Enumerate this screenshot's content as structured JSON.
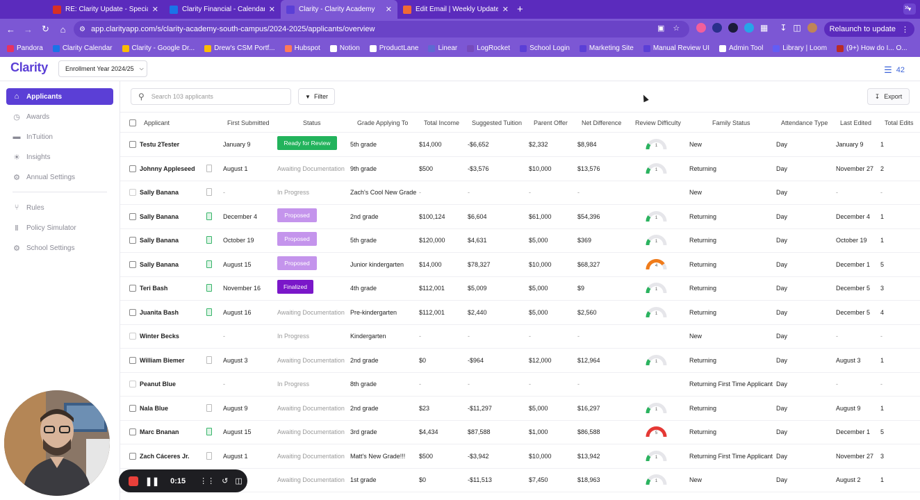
{
  "browser": {
    "tabs": [
      {
        "title": "RE: Clarity Update - Special",
        "color": "#d93025",
        "active": false
      },
      {
        "title": "Clarity Financial - Calendar -",
        "color": "#1a73e8",
        "active": false
      },
      {
        "title": "Clarity - Clarity Academy",
        "color": "#5b3fd6",
        "active": true
      },
      {
        "title": "Edit Email | Weekly Update -",
        "color": "#f06a35",
        "active": false
      }
    ],
    "url": "app.clarityapp.com/s/clarity-academy-south-campus/2024-2025/applicants/overview",
    "relaunch_label": "Relaunch to update",
    "bookmarks": [
      {
        "label": "Pandora",
        "color": "#e73360"
      },
      {
        "label": "Clarity Calendar",
        "color": "#1a73e8"
      },
      {
        "label": "Clarity - Google Dr...",
        "color": "#fbbc04"
      },
      {
        "label": "Drew's CSM Portf...",
        "color": "#fbbc04"
      },
      {
        "label": "Hubspot",
        "color": "#ff7a59"
      },
      {
        "label": "Notion",
        "color": "#ffffff"
      },
      {
        "label": "ProductLane",
        "color": "#ffffff"
      },
      {
        "label": "Linear",
        "color": "#5e6ad2"
      },
      {
        "label": "LogRocket",
        "color": "#764abc"
      },
      {
        "label": "School Login",
        "color": "#5b3fd6"
      },
      {
        "label": "Marketing Site",
        "color": "#5b3fd6"
      },
      {
        "label": "Manual Review UI",
        "color": "#5b3fd6"
      },
      {
        "label": "Admin Tool",
        "color": "#ffffff"
      },
      {
        "label": "Library | Loom",
        "color": "#625df5"
      },
      {
        "label": "(9+) How do I... O...",
        "color": "#b92b27"
      }
    ]
  },
  "app": {
    "logo": "Clarity",
    "year_select": "Enrollment Year 2024/25",
    "credits": "42",
    "accent": "#5b3fd6"
  },
  "sidebar": {
    "items": [
      {
        "label": "Applicants",
        "icon": "home-icon",
        "active": true
      },
      {
        "label": "Awards",
        "icon": "clock-icon",
        "active": false
      },
      {
        "label": "InTuition",
        "icon": "folder-icon",
        "active": false
      },
      {
        "label": "Insights",
        "icon": "lightbulb-icon",
        "active": false
      },
      {
        "label": "Annual Settings",
        "icon": "gear-icon",
        "active": false
      },
      {
        "label": "Rules",
        "icon": "share-icon",
        "active": false
      },
      {
        "label": "Policy Simulator",
        "icon": "bars-icon",
        "active": false
      },
      {
        "label": "School Settings",
        "icon": "gear-icon",
        "active": false
      }
    ]
  },
  "toolbar": {
    "search_placeholder": "Search 103 applicants",
    "filter_label": "Filter",
    "export_label": "Export"
  },
  "table": {
    "columns": [
      "Applicant",
      "First Submitted",
      "Status",
      "Grade Applying To",
      "Total Income",
      "Suggested Tuition",
      "Parent Offer",
      "Net Difference",
      "Review Difficulty",
      "Family Status",
      "Attendance Type",
      "Last Edited",
      "Total Edits"
    ],
    "rows": [
      {
        "applicant": "Testu 2Tester",
        "submitted": "January 9",
        "status": "Ready for Review",
        "status_type": "ready",
        "grade": "5th grade",
        "income": "$14,000",
        "suggested": "-$6,652",
        "offer": "$2,332",
        "net": "$8,984",
        "difficulty": 1,
        "family": "New",
        "attendance": "Day",
        "edited": "January 9",
        "edits": "1",
        "doc": "none",
        "enabled": true
      },
      {
        "applicant": "Johnny Appleseed",
        "submitted": "August 1",
        "status": "Awaiting Documentation",
        "status_type": "text",
        "grade": "9th grade",
        "income": "$500",
        "suggested": "-$3,576",
        "offer": "$10,000",
        "net": "$13,576",
        "difficulty": 1,
        "family": "Returning",
        "attendance": "Day",
        "edited": "November 27",
        "edits": "2",
        "doc": "gray",
        "enabled": true
      },
      {
        "applicant": "Sally Banana",
        "submitted": "-",
        "status": "In Progress",
        "status_type": "text",
        "grade": "Zach's Cool New Grade",
        "income": "-",
        "suggested": "-",
        "offer": "-",
        "net": "-",
        "difficulty": 0,
        "family": "New",
        "attendance": "Day",
        "edited": "-",
        "edits": "-",
        "doc": "gray",
        "enabled": false
      },
      {
        "applicant": "Sally Banana",
        "submitted": "December 4",
        "status": "Proposed",
        "status_type": "proposed",
        "grade": "2nd grade",
        "income": "$100,124",
        "suggested": "$6,604",
        "offer": "$61,000",
        "net": "$54,396",
        "difficulty": 1,
        "family": "Returning",
        "attendance": "Day",
        "edited": "December 4",
        "edits": "1",
        "doc": "green",
        "enabled": true
      },
      {
        "applicant": "Sally Banana",
        "submitted": "October 19",
        "status": "Proposed",
        "status_type": "proposed",
        "grade": "5th grade",
        "income": "$120,000",
        "suggested": "$4,631",
        "offer": "$5,000",
        "net": "$369",
        "difficulty": 1,
        "family": "Returning",
        "attendance": "Day",
        "edited": "October 19",
        "edits": "1",
        "doc": "green",
        "enabled": true
      },
      {
        "applicant": "Sally Banana",
        "submitted": "August 15",
        "status": "Proposed",
        "status_type": "proposed",
        "grade": "Junior kindergarten",
        "income": "$14,000",
        "suggested": "$78,327",
        "offer": "$10,000",
        "net": "$68,327",
        "difficulty": 4,
        "family": "Returning",
        "attendance": "Day",
        "edited": "December 1",
        "edits": "5",
        "doc": "green",
        "enabled": true
      },
      {
        "applicant": "Teri Bash",
        "submitted": "November 16",
        "status": "Finalized",
        "status_type": "finalized",
        "grade": "4th grade",
        "income": "$112,001",
        "suggested": "$5,009",
        "offer": "$5,000",
        "net": "$9",
        "difficulty": 1,
        "family": "Returning",
        "attendance": "Day",
        "edited": "December 5",
        "edits": "3",
        "doc": "green",
        "enabled": true
      },
      {
        "applicant": "Juanita Bash",
        "submitted": "August 16",
        "status": "Awaiting Documentation",
        "status_type": "text",
        "grade": "Pre-kindergarten",
        "income": "$112,001",
        "suggested": "$2,440",
        "offer": "$5,000",
        "net": "$2,560",
        "difficulty": 1,
        "family": "Returning",
        "attendance": "Day",
        "edited": "December 5",
        "edits": "4",
        "doc": "green",
        "enabled": true
      },
      {
        "applicant": "Winter Becks",
        "submitted": "-",
        "status": "In Progress",
        "status_type": "text",
        "grade": "Kindergarten",
        "income": "-",
        "suggested": "-",
        "offer": "-",
        "net": "-",
        "difficulty": 0,
        "family": "New",
        "attendance": "Day",
        "edited": "-",
        "edits": "-",
        "doc": "none",
        "enabled": false
      },
      {
        "applicant": "William Biemer",
        "submitted": "August 3",
        "status": "Awaiting Documentation",
        "status_type": "text",
        "grade": "2nd grade",
        "income": "$0",
        "suggested": "-$964",
        "offer": "$12,000",
        "net": "$12,964",
        "difficulty": 1,
        "family": "Returning",
        "attendance": "Day",
        "edited": "August 3",
        "edits": "1",
        "doc": "gray",
        "enabled": true
      },
      {
        "applicant": "Peanut Blue",
        "submitted": "-",
        "status": "In Progress",
        "status_type": "text",
        "grade": "8th grade",
        "income": "-",
        "suggested": "-",
        "offer": "-",
        "net": "-",
        "difficulty": 0,
        "family": "Returning First Time Applicant",
        "attendance": "Day",
        "edited": "-",
        "edits": "-",
        "doc": "none",
        "enabled": false
      },
      {
        "applicant": "Nala Blue",
        "submitted": "August 9",
        "status": "Awaiting Documentation",
        "status_type": "text",
        "grade": "2nd grade",
        "income": "$23",
        "suggested": "-$11,297",
        "offer": "$5,000",
        "net": "$16,297",
        "difficulty": 1,
        "family": "Returning",
        "attendance": "Day",
        "edited": "August 9",
        "edits": "1",
        "doc": "gray",
        "enabled": true
      },
      {
        "applicant": "Marc Bnanan",
        "submitted": "August 15",
        "status": "Awaiting Documentation",
        "status_type": "text",
        "grade": "3rd grade",
        "income": "$4,434",
        "suggested": "$87,588",
        "offer": "$1,000",
        "net": "$86,588",
        "difficulty": 5,
        "family": "Returning",
        "attendance": "Day",
        "edited": "December 1",
        "edits": "5",
        "doc": "green",
        "enabled": true
      },
      {
        "applicant": "Zach Cáceres Jr.",
        "submitted": "August 1",
        "status": "Awaiting Documentation",
        "status_type": "text",
        "grade": "Matt's New Grade!!!",
        "income": "$500",
        "suggested": "-$3,942",
        "offer": "$10,000",
        "net": "$13,942",
        "difficulty": 1,
        "family": "Returning First Time Applicant",
        "attendance": "Day",
        "edited": "November 27",
        "edits": "3",
        "doc": "gray",
        "enabled": true
      },
      {
        "applicant": "",
        "submitted": "",
        "status": "Awaiting Documentation",
        "status_type": "text",
        "grade": "1st grade",
        "income": "$0",
        "suggested": "-$11,513",
        "offer": "$7,450",
        "net": "$18,963",
        "difficulty": 1,
        "family": "New",
        "attendance": "Day",
        "edited": "August 2",
        "edits": "1",
        "doc": "gray",
        "enabled": true
      }
    ]
  },
  "recorder": {
    "time": "0:15"
  }
}
